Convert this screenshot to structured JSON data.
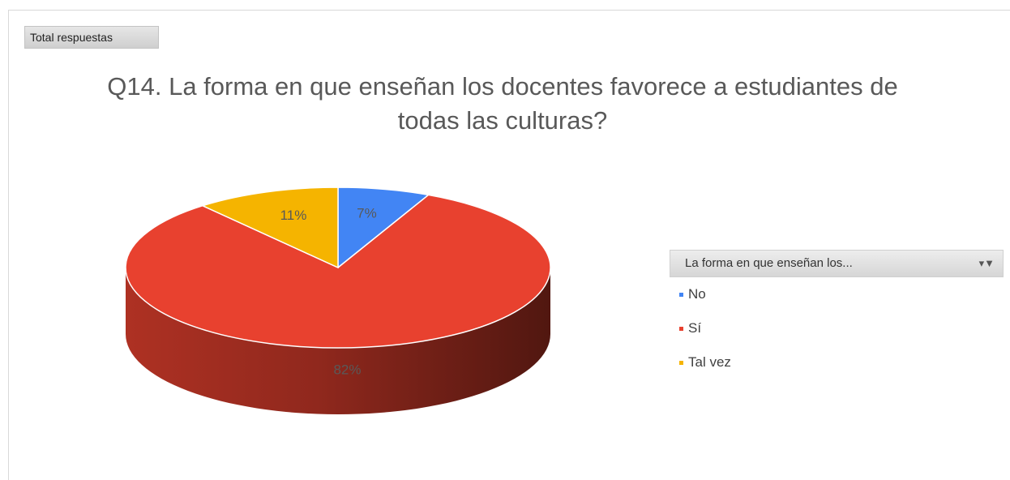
{
  "header": {
    "field_button_label": "Total respuestas"
  },
  "chart_data": {
    "type": "pie",
    "title": "Q14. La forma en que enseñan los docentes favorece a estudiantes de todas las culturas?",
    "slices": [
      {
        "label": "No",
        "value": 7,
        "display": "7%",
        "color": "#4285f4"
      },
      {
        "label": "Sí",
        "value": 82,
        "display": "82%",
        "color": "#e8412f"
      },
      {
        "label": "Tal vez",
        "value": 11,
        "display": "11%",
        "color": "#f5b400"
      }
    ],
    "legend": {
      "title": "La forma en que enseñan los...",
      "placement": "right",
      "filter_icon": "filter-dropdown-icon"
    },
    "style": "3d-pie"
  }
}
